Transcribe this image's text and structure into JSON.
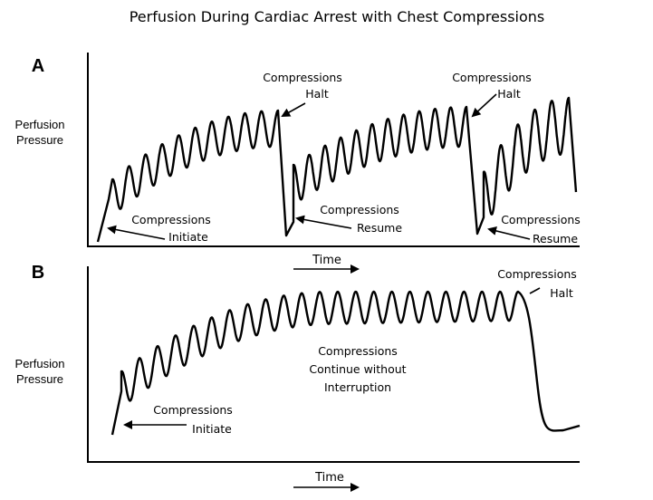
{
  "title": "Perfusion During Cardiac Arrest with Chest Compressions",
  "panel_a": {
    "label": "A",
    "ylabel": [
      "Perfusion",
      "Pressure"
    ],
    "xlabel": "Time",
    "annotations": {
      "initiate": [
        "Compressions",
        "Initiate"
      ],
      "halt1": [
        "Compressions",
        "Halt"
      ],
      "resume1": [
        "Compressions",
        "Resume"
      ],
      "halt2": [
        "Compressions",
        "Halt"
      ],
      "resume2": [
        "Compressions",
        "Resume"
      ]
    }
  },
  "panel_b": {
    "label": "B",
    "ylabel": [
      "Perfusion",
      "Pressure"
    ],
    "xlabel": "Time",
    "annotations": {
      "initiate": [
        "Compressions",
        "Initiate"
      ],
      "continue": [
        "Compressions",
        "Continue without",
        "Interruption"
      ],
      "halt": [
        "Compressions",
        "Halt"
      ]
    }
  }
}
